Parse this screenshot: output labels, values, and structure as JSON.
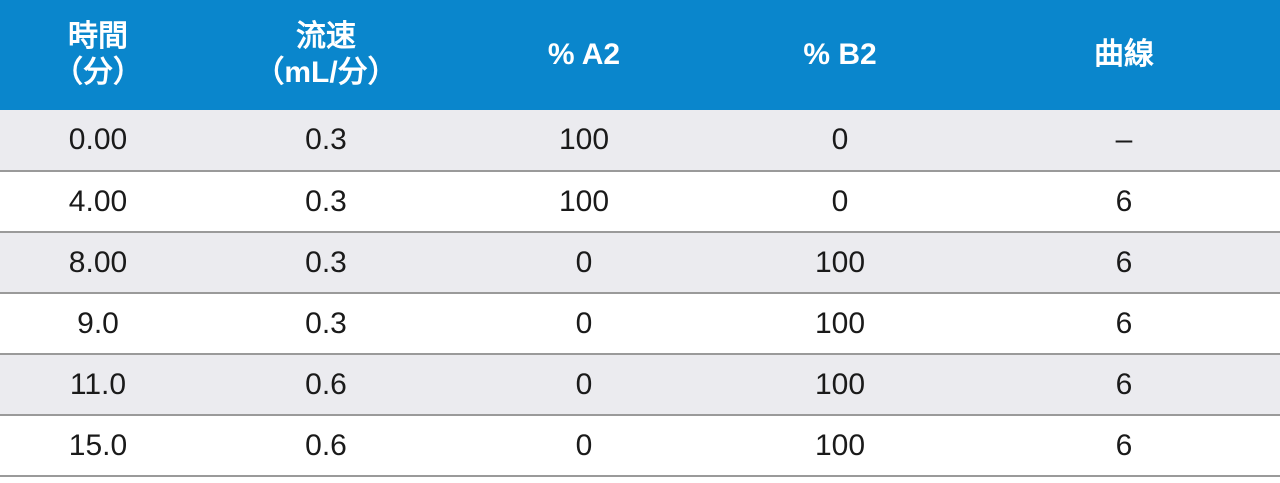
{
  "table": {
    "header_bg": "#0a86cc",
    "headers": [
      {
        "line1": "時間",
        "line2": "（分）"
      },
      {
        "line1": "流速",
        "line2": "（mL/分）"
      },
      {
        "line1": "% A2",
        "line2": ""
      },
      {
        "line1": "% B2",
        "line2": ""
      },
      {
        "line1": "曲線",
        "line2": ""
      }
    ],
    "rows": [
      [
        "0.00",
        "0.3",
        "100",
        "0",
        "–"
      ],
      [
        "4.00",
        "0.3",
        "100",
        "0",
        "6"
      ],
      [
        "8.00",
        "0.3",
        "0",
        "100",
        "6"
      ],
      [
        "9.0",
        "0.3",
        "0",
        "100",
        "6"
      ],
      [
        "11.0",
        "0.6",
        "0",
        "100",
        "6"
      ],
      [
        "15.0",
        "0.6",
        "0",
        "100",
        "6"
      ]
    ]
  }
}
